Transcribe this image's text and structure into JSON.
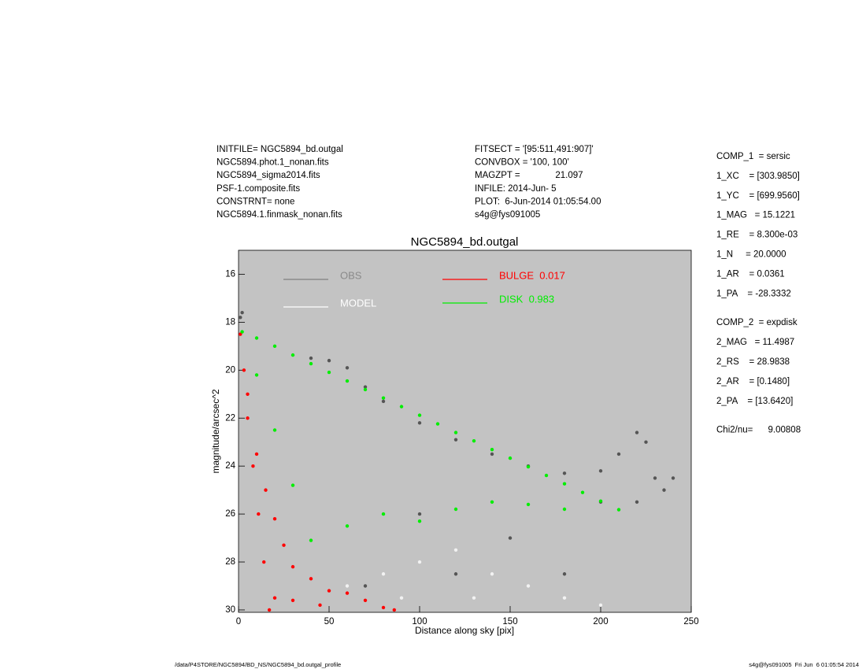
{
  "chart_data": {
    "type": "scatter",
    "title": "NGC5894_bd.outgal",
    "x_label": "Distance along sky [pix]",
    "y_label": "magnitude/arcsec^2",
    "xlim": [
      0,
      250
    ],
    "xticks": [
      0,
      50,
      100,
      150,
      200,
      250
    ],
    "ylim": [
      30.1,
      15
    ],
    "yticks": [
      16,
      18,
      20,
      22,
      24,
      26,
      28,
      30
    ],
    "background": "#c3c3c3",
    "series": [
      {
        "name": "OBS",
        "color": "#555555",
        "x": [
          1,
          2,
          40,
          50,
          60,
          70,
          80,
          100,
          120,
          140,
          160,
          180,
          200,
          210,
          220,
          225,
          230,
          235,
          240,
          220,
          200,
          100,
          150,
          120,
          70,
          180
        ],
        "values": [
          17.8,
          17.6,
          19.5,
          19.6,
          19.9,
          20.7,
          21.3,
          22.2,
          22.9,
          23.5,
          24.0,
          24.3,
          24.2,
          23.5,
          22.6,
          23.0,
          24.5,
          25.0,
          24.5,
          25.5,
          25.5,
          26.0,
          27.0,
          28.5,
          29.0,
          28.5
        ]
      },
      {
        "name": "MODEL",
        "color": "#f2f2f2",
        "x": [
          60,
          80,
          100,
          120,
          140,
          160,
          180,
          200,
          90,
          130
        ],
        "values": [
          29.0,
          28.5,
          28.0,
          27.5,
          28.5,
          29.0,
          29.5,
          29.8,
          29.5,
          29.5
        ]
      },
      {
        "name": "BULGE  0.017",
        "color": "#ff0000",
        "x": [
          1,
          3,
          5,
          8,
          11,
          14,
          17,
          5,
          10,
          15,
          20,
          25,
          30,
          40,
          50,
          60,
          70,
          80,
          86,
          20,
          30,
          45
        ],
        "values": [
          18.5,
          20.0,
          22.0,
          24.0,
          26.0,
          28.0,
          30.0,
          21.0,
          23.5,
          25.0,
          26.2,
          27.3,
          28.2,
          28.7,
          29.2,
          29.3,
          29.6,
          29.9,
          30.0,
          29.5,
          29.6,
          29.8
        ]
      },
      {
        "name": "DISK  0.983",
        "color": "#00ee00",
        "x": [
          2,
          10,
          20,
          30,
          40,
          50,
          60,
          70,
          80,
          90,
          100,
          110,
          120,
          130,
          140,
          150,
          160,
          170,
          180,
          190,
          200,
          210,
          10,
          20,
          30,
          40,
          60,
          80,
          100,
          120,
          140,
          160,
          180
        ],
        "values": [
          18.4,
          18.66,
          19.0,
          19.37,
          19.73,
          20.09,
          20.45,
          20.81,
          21.16,
          21.52,
          21.88,
          22.24,
          22.6,
          22.95,
          23.31,
          23.67,
          24.03,
          24.39,
          24.74,
          25.1,
          25.46,
          25.82,
          20.2,
          22.5,
          24.8,
          27.1,
          26.5,
          26.0,
          26.3,
          25.8,
          25.5,
          25.6,
          25.8
        ]
      }
    ]
  },
  "header_left": [
    "INITFILE= NGC5894_bd.outgal",
    "NGC5894.phot.1_nonan.fits",
    "NGC5894_sigma2014.fits",
    "PSF-1.composite.fits",
    "CONSTRNT= none",
    "NGC5894.1.finmask_nonan.fits"
  ],
  "header_mid": [
    "FITSECT = '[95:511,491:907]'",
    "CONVBOX = '100, 100'",
    "MAGZPT =              21.097",
    "INFILE: 2014-Jun- 5",
    "PLOT:  6-Jun-2014 01:05:54.00",
    "s4g@fys091005"
  ],
  "params": [
    "COMP_1  = sersic",
    "1_XC    = [303.9850]",
    "1_YC    = [699.9560]",
    "1_MAG   = 15.1221",
    "1_RE    = 8.300e-03",
    "1_N     = 20.0000",
    "1_AR    = 0.0361",
    "1_PA    = -28.3332",
    "COMP_2  = expdisk",
    "2_MAG   = 11.4987",
    "2_RS    = 28.9838",
    "2_AR    = [0.1480]",
    "2_PA    = [13.6420]",
    "Chi2/nu=      9.00808"
  ],
  "footer_left": "/data/P4STORE/NGC5894/BD_NS/NGC5894_bd.outgal_profile",
  "footer_right": "s4g@fys091005  Fri Jun  6 01:05:54 2014"
}
